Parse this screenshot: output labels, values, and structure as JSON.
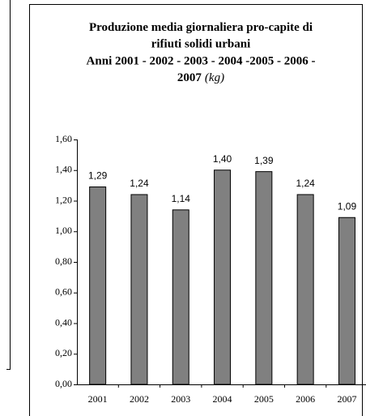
{
  "chart_data": {
    "type": "bar",
    "title_lines": [
      "Produzione media giornaliera pro-capite di",
      "rifiuti solidi urbani",
      "Anni 2001 - 2002 - 2003 - 2004 -2005 - 2006 -",
      "2007"
    ],
    "unit": "(kg)",
    "categories": [
      "2001",
      "2002",
      "2003",
      "2004",
      "2005",
      "2006",
      "2007"
    ],
    "values": [
      1.29,
      1.24,
      1.14,
      1.4,
      1.39,
      1.24,
      1.09
    ],
    "value_labels": [
      "1,29",
      "1,24",
      "1,14",
      "1,40",
      "1,39",
      "1,24",
      "1,09"
    ],
    "color": "#808080",
    "ylim": [
      0,
      1.6
    ],
    "yticks": [
      {
        "value": 0,
        "label": "0,00"
      },
      {
        "value": 0.2,
        "label": "0,20"
      },
      {
        "value": 0.4,
        "label": "0,40"
      },
      {
        "value": 0.6,
        "label": "0,60"
      },
      {
        "value": 0.8,
        "label": "0,80"
      },
      {
        "value": 1.0,
        "label": "1,00"
      },
      {
        "value": 1.2,
        "label": "1,20"
      },
      {
        "value": 1.4,
        "label": "1,40"
      },
      {
        "value": 1.6,
        "label": "1,60"
      }
    ]
  }
}
